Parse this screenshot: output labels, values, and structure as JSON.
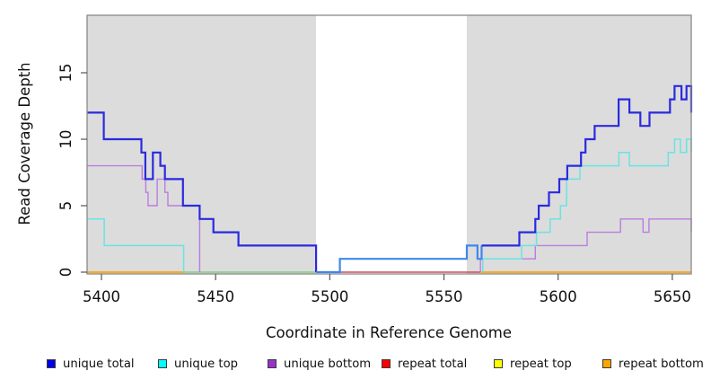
{
  "legend": [
    {
      "label": "unique total",
      "color": "#0000ee"
    },
    {
      "label": "unique top",
      "color": "#00ffff"
    },
    {
      "label": "unique bottom",
      "color": "#9932cc"
    },
    {
      "label": "repeat total",
      "color": "#ff0000"
    },
    {
      "label": "repeat top",
      "color": "#ffff00"
    },
    {
      "label": "repeat bottom",
      "color": "#ffa500"
    }
  ],
  "chart_data": {
    "type": "line",
    "subtype": "step-coverage-plot",
    "title": "",
    "xlabel": "Coordinate in Reference Genome",
    "ylabel": "Read Coverage Depth",
    "xlim": [
      5393.7,
      5658.3
    ],
    "ylim": [
      0,
      19.3
    ],
    "x_ticks": [
      5400,
      5450,
      5500,
      5550,
      5600,
      5650
    ],
    "y_ticks": [
      0,
      5,
      10,
      15
    ],
    "grid": false,
    "legend_position": "bottom",
    "background_bands": [
      {
        "name": "unique-region-left",
        "x0": 5393.7,
        "x1": 5494,
        "color": "#dcdcdc"
      },
      {
        "name": "repeat-region",
        "x0": 5494,
        "x1": 5560,
        "color": "#ffffff"
      },
      {
        "name": "unique-region-right",
        "x0": 5560,
        "x1": 5658.3,
        "color": "#dcdcdc"
      }
    ],
    "series": [
      {
        "name": "repeat top",
        "legend_color": "#ffff00",
        "width": 1.8,
        "segments": [
          {
            "color": "#8fcf8f",
            "points": [
              [
                5436,
                0
              ],
              [
                5494,
                0
              ]
            ]
          }
        ]
      },
      {
        "name": "repeat total",
        "legend_color": "#ff0000",
        "width": 1.6,
        "segments": [
          {
            "color": "#d24a64",
            "points": [
              [
                5494,
                0
              ],
              [
                5566,
                0
              ]
            ]
          }
        ]
      },
      {
        "name": "repeat bottom",
        "legend_color": "#ffa500",
        "width": 1.8,
        "segments": [
          {
            "color": "#ffa500",
            "points": [
              [
                5393.7,
                0
              ],
              [
                5436,
                0
              ]
            ]
          },
          {
            "color": "#ffa500",
            "points": [
              [
                5566,
                0
              ],
              [
                5658.3,
                0
              ]
            ]
          }
        ]
      },
      {
        "name": "unique bottom",
        "legend_color": "#9932cc",
        "width": 1.4,
        "segments": [
          {
            "color": "#bb7de0",
            "points": [
              [
                5393.7,
                8
              ],
              [
                5417.8,
                7
              ],
              [
                5419.4,
                6
              ],
              [
                5420.4,
                5
              ],
              [
                5424.4,
                7
              ],
              [
                5427.8,
                6
              ],
              [
                5429.1,
                5
              ],
              [
                5443,
                0
              ]
            ]
          },
          {
            "color": "#bb7de0",
            "points": [
              [
                5566,
                0
              ],
              [
                5566,
                1
              ],
              [
                5590,
                2
              ],
              [
                5612.7,
                3
              ],
              [
                5627.3,
                4
              ],
              [
                5637.2,
                3
              ],
              [
                5639.8,
                4
              ],
              [
                5658.3,
                3
              ]
            ]
          }
        ]
      },
      {
        "name": "unique top",
        "legend_color": "#00ffff",
        "width": 1.5,
        "segments": [
          {
            "color": "#6ae3e3",
            "points": [
              [
                5393.7,
                4
              ],
              [
                5401.2,
                2
              ],
              [
                5436,
                0
              ]
            ]
          },
          {
            "color": "#6ae3e3",
            "points": [
              [
                5567,
                0
              ],
              [
                5567,
                1
              ],
              [
                5584,
                2
              ],
              [
                5590.5,
                3
              ],
              [
                5596.5,
                4
              ],
              [
                5601,
                5
              ],
              [
                5603.7,
                7
              ],
              [
                5609.6,
                8
              ],
              [
                5626.6,
                9
              ],
              [
                5631.2,
                8
              ],
              [
                5648.2,
                9
              ],
              [
                5651,
                10
              ],
              [
                5653.6,
                9
              ],
              [
                5656.2,
                10
              ],
              [
                5658.3,
                9
              ]
            ]
          }
        ]
      },
      {
        "name": "unique total",
        "legend_color": "#0000ee",
        "width": 2.2,
        "segments": [
          {
            "color": "#2a2ae0",
            "points": [
              [
                5393.7,
                12
              ],
              [
                5401,
                10
              ],
              [
                5417.5,
                9
              ],
              [
                5419.2,
                7
              ],
              [
                5422.5,
                9
              ],
              [
                5425.8,
                8
              ],
              [
                5427.8,
                7
              ],
              [
                5435.7,
                5
              ],
              [
                5443,
                4
              ],
              [
                5449,
                3
              ],
              [
                5460,
                2
              ],
              [
                5494,
                0
              ]
            ]
          },
          {
            "color": "#3e87ee",
            "points": [
              [
                5494,
                0
              ],
              [
                5504.4,
                1
              ],
              [
                5560,
                2
              ],
              [
                5564.7,
                1
              ],
              [
                5566.5,
                2
              ]
            ]
          },
          {
            "color": "#2a2ae0",
            "points": [
              [
                5566.5,
                2
              ],
              [
                5583,
                3
              ],
              [
                5590,
                4
              ],
              [
                5591.5,
                5
              ],
              [
                5596,
                6
              ],
              [
                5600.5,
                7
              ],
              [
                5604,
                8
              ],
              [
                5610,
                9
              ],
              [
                5612,
                10
              ],
              [
                5616,
                11
              ],
              [
                5626.5,
                13
              ],
              [
                5631.2,
                12
              ],
              [
                5636,
                11
              ],
              [
                5640,
                12
              ],
              [
                5649,
                13
              ],
              [
                5651,
                14
              ],
              [
                5654,
                13
              ],
              [
                5656.2,
                14
              ],
              [
                5658.3,
                12
              ]
            ]
          }
        ]
      }
    ]
  }
}
